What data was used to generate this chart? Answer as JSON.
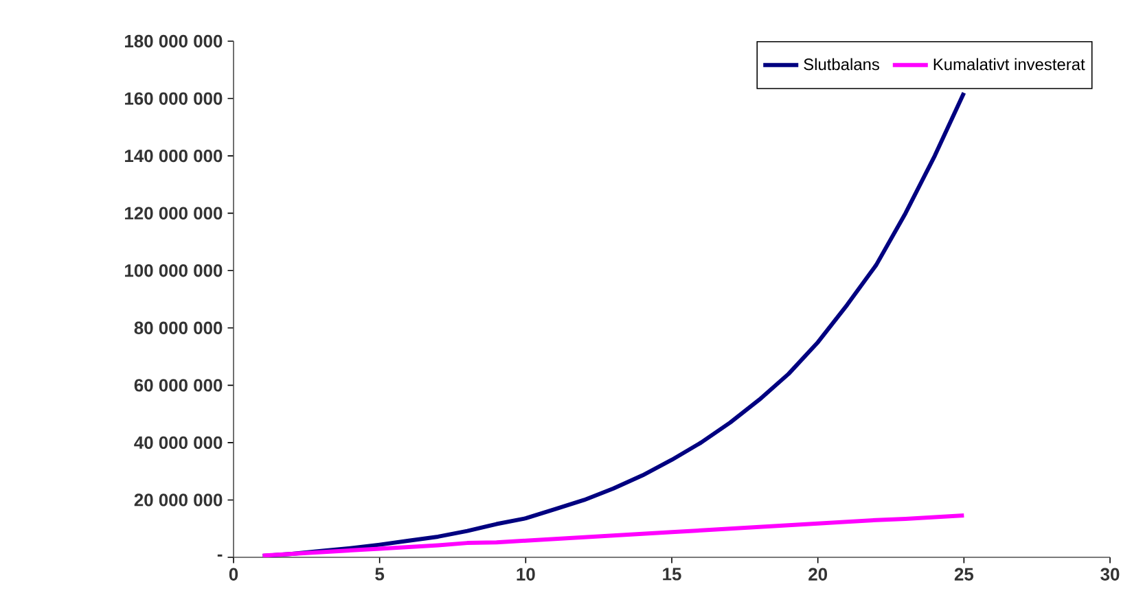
{
  "chart_data": {
    "type": "line",
    "x": [
      1,
      2,
      3,
      4,
      5,
      6,
      7,
      8,
      9,
      10,
      11,
      12,
      13,
      14,
      15,
      16,
      17,
      18,
      19,
      20,
      21,
      22,
      23,
      24,
      25
    ],
    "series": [
      {
        "name": "Slutbalans",
        "color": "#000080",
        "values": [
          500000,
          1200000,
          2200000,
          3200000,
          4400000,
          5800000,
          7200000,
          9200000,
          11600000,
          13600000,
          16800000,
          20000000,
          24000000,
          28600000,
          34000000,
          40000000,
          47000000,
          55000000,
          64000000,
          75000000,
          88000000,
          102000000,
          120000000,
          140000000,
          162000000
        ]
      },
      {
        "name": "Kumalativt investerat",
        "color": "#ff00ff",
        "values": [
          600000,
          1200000,
          1800000,
          2400000,
          3000000,
          3600000,
          4200000,
          5000000,
          5200000,
          5800000,
          6400000,
          7000000,
          7600000,
          8200000,
          8800000,
          9400000,
          10000000,
          10600000,
          11200000,
          11800000,
          12400000,
          13000000,
          13400000,
          14000000,
          14600000
        ]
      }
    ],
    "xlim": [
      0,
      30
    ],
    "xticks": [
      0,
      5,
      10,
      15,
      20,
      25,
      30
    ],
    "ylim": [
      0,
      180000000
    ],
    "yticks": [
      {
        "value": 0,
        "label": "-"
      },
      {
        "value": 20000000,
        "label": "20 000 000"
      },
      {
        "value": 40000000,
        "label": "40 000 000"
      },
      {
        "value": 60000000,
        "label": "60 000 000"
      },
      {
        "value": 80000000,
        "label": "80 000 000"
      },
      {
        "value": 100000000,
        "label": "100 000 000"
      },
      {
        "value": 120000000,
        "label": "120 000 000"
      },
      {
        "value": 140000000,
        "label": "140 000 000"
      },
      {
        "value": 160000000,
        "label": "160 000 000"
      },
      {
        "value": 180000000,
        "label": "180 000 000"
      }
    ],
    "grid": false,
    "legend": "top right",
    "marker": "none",
    "line_style": "solid"
  }
}
